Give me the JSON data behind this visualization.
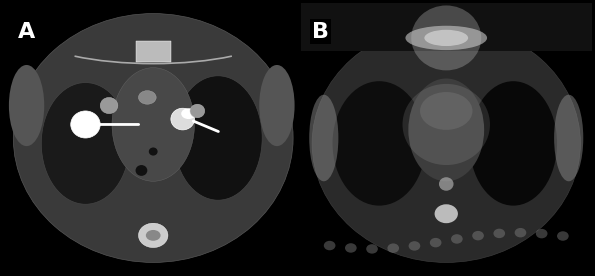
{
  "fig_width": 5.95,
  "fig_height": 2.76,
  "dpi": 100,
  "panel_A_label": "A",
  "panel_B_label": "B",
  "label_color": "white",
  "label_bg_color": "black",
  "label_fontsize": 16,
  "label_fontweight": "bold",
  "seed": 42
}
